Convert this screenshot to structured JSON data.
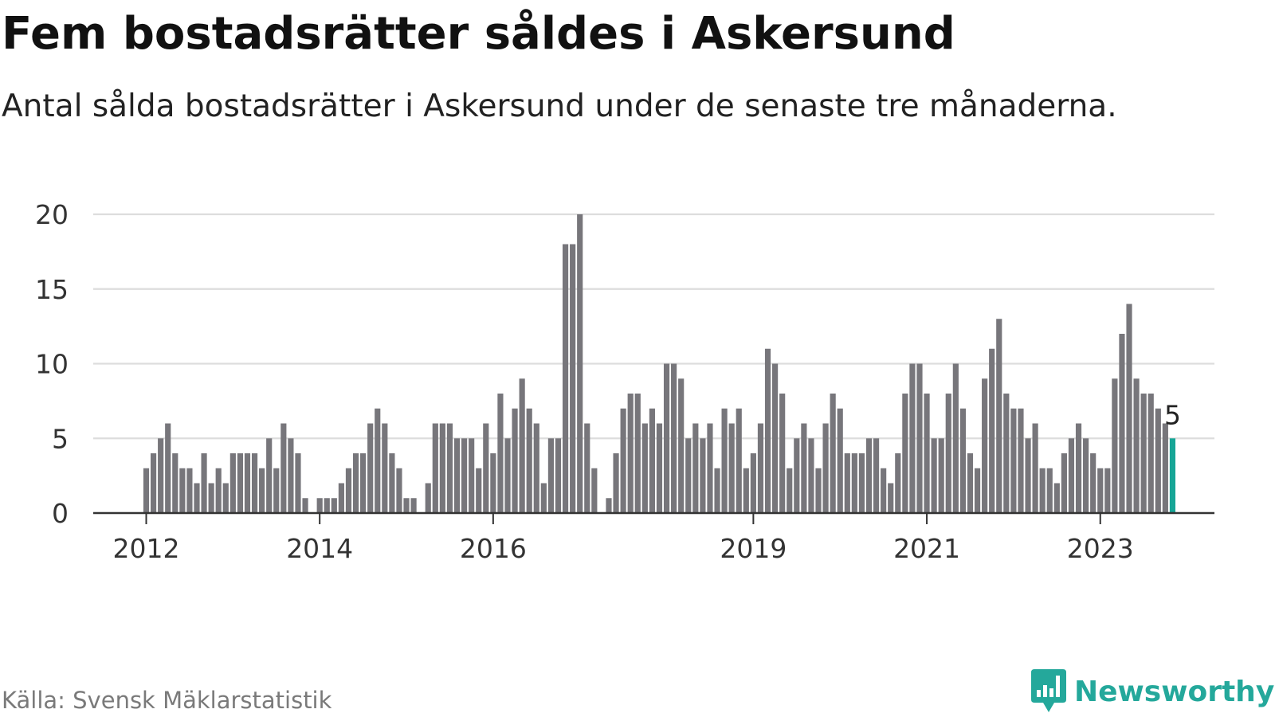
{
  "header": {
    "title": "Fem bostadsrätter såldes i Askersund",
    "subtitle": "Antal sålda bostadsrätter i Askersund under de senaste tre månaderna."
  },
  "footer": {
    "source": "Källa: Svensk Mäklarstatistik",
    "brand": "Newsworthy"
  },
  "colors": {
    "bar": "#77767b",
    "highlight": "#16a596",
    "gridline": "#dddddd",
    "axis": "#333333",
    "brand": "#24a89b"
  },
  "chart_data": {
    "type": "bar",
    "x_start": "2012-01",
    "x_interval": "month",
    "x_ticks": [
      "2012",
      "2014",
      "2016",
      "2019",
      "2021",
      "2023"
    ],
    "y_ticks": [
      0,
      5,
      10,
      15,
      20
    ],
    "ylim": [
      0,
      20
    ],
    "grid": true,
    "values": [
      3,
      4,
      5,
      6,
      4,
      3,
      3,
      2,
      4,
      2,
      3,
      2,
      4,
      4,
      4,
      4,
      3,
      5,
      3,
      6,
      5,
      4,
      1,
      0,
      1,
      1,
      1,
      2,
      3,
      4,
      4,
      6,
      7,
      6,
      4,
      3,
      1,
      1,
      0,
      2,
      6,
      6,
      6,
      5,
      5,
      5,
      3,
      6,
      4,
      8,
      5,
      7,
      9,
      7,
      6,
      2,
      5,
      5,
      18,
      18,
      20,
      6,
      3,
      0,
      1,
      4,
      7,
      8,
      8,
      6,
      7,
      6,
      10,
      10,
      9,
      5,
      6,
      5,
      6,
      3,
      7,
      6,
      7,
      3,
      4,
      6,
      11,
      10,
      8,
      3,
      5,
      6,
      5,
      3,
      6,
      8,
      7,
      4,
      4,
      4,
      5,
      5,
      3,
      2,
      4,
      8,
      10,
      10,
      8,
      5,
      5,
      8,
      10,
      7,
      4,
      3,
      9,
      11,
      13,
      8,
      7,
      7,
      5,
      6,
      3,
      3,
      2,
      4,
      5,
      6,
      5,
      4,
      3,
      3,
      9,
      12,
      14,
      9,
      8,
      8,
      7,
      6,
      5
    ],
    "highlight_label": "5"
  }
}
